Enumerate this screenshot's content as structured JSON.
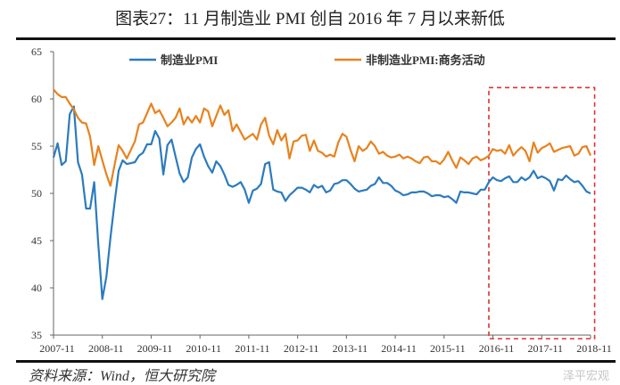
{
  "title": "图表27：11 月制造业 PMI 创自 2016 年 7 月以来新低",
  "source": "资料来源：Wind，恒大研究院",
  "watermark": "泽平宏观",
  "chart_data": {
    "type": "line",
    "title": "图表27：11 月制造业 PMI 创自 2016 年 7 月以来新低",
    "x_start": "2007-11",
    "x_end": "2018-11",
    "x_frequency": "monthly",
    "x_tick_labels": [
      "2007-11",
      "2008-11",
      "2009-11",
      "2010-11",
      "2011-11",
      "2012-11",
      "2013-11",
      "2014-11",
      "2015-11",
      "2016-11",
      "2017-11",
      "2018-11"
    ],
    "ylim": [
      35,
      65
    ],
    "y_tick_labels": [
      "35",
      "40",
      "45",
      "50",
      "55",
      "60",
      "65"
    ],
    "y_ticks": [
      35,
      40,
      45,
      50,
      55,
      60,
      65
    ],
    "grid": false,
    "legend": "top",
    "series": [
      {
        "name": "制造业PMI",
        "color": "#2b7bbf",
        "values": [
          53.8,
          55.3,
          53.0,
          53.4,
          58.4,
          59.2,
          53.3,
          52.0,
          48.4,
          48.4,
          51.2,
          44.6,
          38.8,
          41.2,
          45.3,
          49.0,
          52.4,
          53.5,
          53.1,
          53.2,
          53.3,
          54.0,
          54.3,
          55.2,
          55.2,
          56.6,
          55.8,
          52.0,
          55.1,
          55.7,
          53.9,
          52.1,
          51.2,
          51.7,
          53.8,
          54.7,
          55.2,
          53.9,
          52.9,
          52.2,
          53.4,
          52.9,
          52.0,
          50.9,
          50.7,
          50.9,
          51.2,
          50.4,
          49.0,
          50.3,
          50.5,
          51.0,
          53.1,
          53.3,
          50.4,
          50.2,
          50.1,
          49.2,
          49.8,
          50.2,
          50.6,
          50.6,
          50.4,
          50.1,
          50.9,
          50.6,
          50.8,
          50.1,
          50.3,
          51.0,
          51.1,
          51.4,
          51.4,
          51.0,
          50.5,
          50.2,
          50.3,
          50.4,
          50.8,
          51.0,
          51.7,
          51.1,
          51.1,
          50.8,
          50.3,
          50.1,
          49.8,
          49.9,
          50.1,
          50.1,
          50.2,
          50.2,
          50.0,
          49.7,
          49.8,
          49.8,
          49.6,
          49.7,
          49.4,
          49.0,
          50.2,
          50.1,
          50.1,
          50.0,
          49.9,
          50.4,
          50.4,
          51.2,
          51.7,
          51.4,
          51.3,
          51.6,
          51.8,
          51.2,
          51.2,
          51.7,
          51.4,
          51.7,
          52.4,
          51.6,
          51.8,
          51.6,
          51.3,
          50.3,
          51.5,
          51.4,
          51.9,
          51.5,
          51.2,
          51.3,
          50.8,
          50.2,
          50.0
        ]
      },
      {
        "name": "非制造业PMI:商务活动",
        "color": "#e8821e",
        "values": [
          61.0,
          60.5,
          60.2,
          60.2,
          59.5,
          58.9,
          58.0,
          57.5,
          57.4,
          56.0,
          53.0,
          55.0,
          53.5,
          52.0,
          50.8,
          53.0,
          55.1,
          54.5,
          53.7,
          54.6,
          55.5,
          57.3,
          57.5,
          58.5,
          59.5,
          58.5,
          58.8,
          58.0,
          57.1,
          57.5,
          58.0,
          59.0,
          57.3,
          58.1,
          57.5,
          58.2,
          57.5,
          59.0,
          58.7,
          57.1,
          58.2,
          59.3,
          58.3,
          58.8,
          56.6,
          57.3,
          56.5,
          55.7,
          56.0,
          56.3,
          55.7,
          57.3,
          58.0,
          56.1,
          55.2,
          56.7,
          55.6,
          56.3,
          53.7,
          55.5,
          55.6,
          56.1,
          56.2,
          54.5,
          55.6,
          54.5,
          54.3,
          53.9,
          54.1,
          53.9,
          55.4,
          56.3,
          56.0,
          54.6,
          53.4,
          55.0,
          54.5,
          54.8,
          55.5,
          55.0,
          54.2,
          54.4,
          54.0,
          53.8,
          53.9,
          54.1,
          53.7,
          53.9,
          53.7,
          53.4,
          53.2,
          53.8,
          53.9,
          53.4,
          53.4,
          53.1,
          53.6,
          54.4,
          53.5,
          52.7,
          53.8,
          53.5,
          53.1,
          53.7,
          53.9,
          53.5,
          53.7,
          54.0,
          54.7,
          54.5,
          54.6,
          54.2,
          55.1,
          54.0,
          54.5,
          54.9,
          54.5,
          53.4,
          55.4,
          54.3,
          54.8,
          55.0,
          55.3,
          54.4,
          54.6,
          54.8,
          54.9,
          55.0,
          54.0,
          54.2,
          54.9,
          55.0,
          54.0
        ]
      }
    ],
    "annotations": [
      {
        "type": "dashed-box",
        "color": "#e03030",
        "x_from": "2016-10",
        "x_to": "2018-12",
        "y_from": 35,
        "y_to": 61.2
      }
    ]
  }
}
